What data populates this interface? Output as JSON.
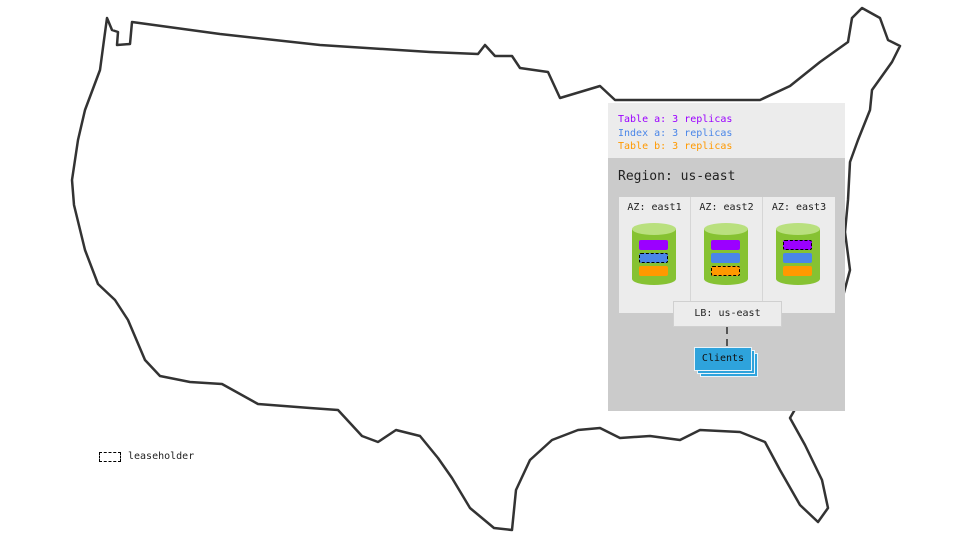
{
  "legend": {
    "items": [
      {
        "label": "Table a: 3 replicas",
        "color": "#9b00ff"
      },
      {
        "label": "Index a: 3 replicas",
        "color": "#4a86e8"
      },
      {
        "label": "Table b: 3 replicas",
        "color": "#ff9900"
      }
    ]
  },
  "region": {
    "title": "Region: us-east",
    "zones": [
      {
        "label": "AZ: east1",
        "leaseholder": "Index a"
      },
      {
        "label": "AZ: east2",
        "leaseholder": "Table b"
      },
      {
        "label": "AZ: east3",
        "leaseholder": "Table a"
      }
    ],
    "load_balancer": "LB: us-east",
    "clients": "Clients"
  },
  "key": {
    "leaseholder": "leaseholder"
  },
  "colors": {
    "cylinder": "#86c232",
    "clients": "#2ea3dc",
    "panel": "#cbcbcb"
  }
}
